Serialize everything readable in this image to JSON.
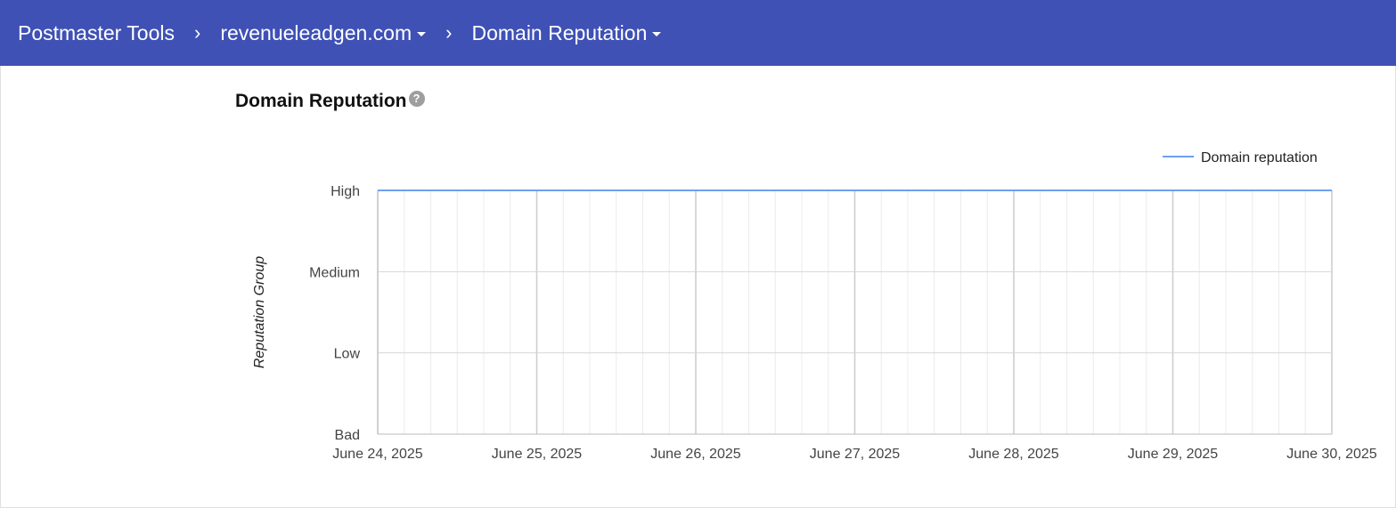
{
  "header": {
    "app_title": "Postmaster Tools",
    "domain": "revenueleadgen.com",
    "section": "Domain Reputation"
  },
  "page": {
    "title": "Domain Reputation",
    "help_icon": "help-circle-icon"
  },
  "chart_data": {
    "type": "line",
    "title": "",
    "xlabel": "",
    "ylabel": "Reputation Group",
    "y_categories": [
      "Bad",
      "Low",
      "Medium",
      "High"
    ],
    "x_ticks": [
      "June 24, 2025",
      "June 25, 2025",
      "June 26, 2025",
      "June 27, 2025",
      "June 28, 2025",
      "June 29, 2025",
      "June 30, 2025"
    ],
    "series": [
      {
        "name": "Domain reputation",
        "color": "#6f9ff0",
        "x": [
          "June 24, 2025",
          "June 25, 2025",
          "June 26, 2025",
          "June 27, 2025",
          "June 28, 2025",
          "June 29, 2025",
          "June 30, 2025"
        ],
        "values": [
          "High",
          "High",
          "High",
          "High",
          "High",
          "High",
          "High"
        ]
      }
    ],
    "legend": "top-right",
    "grid": true
  }
}
